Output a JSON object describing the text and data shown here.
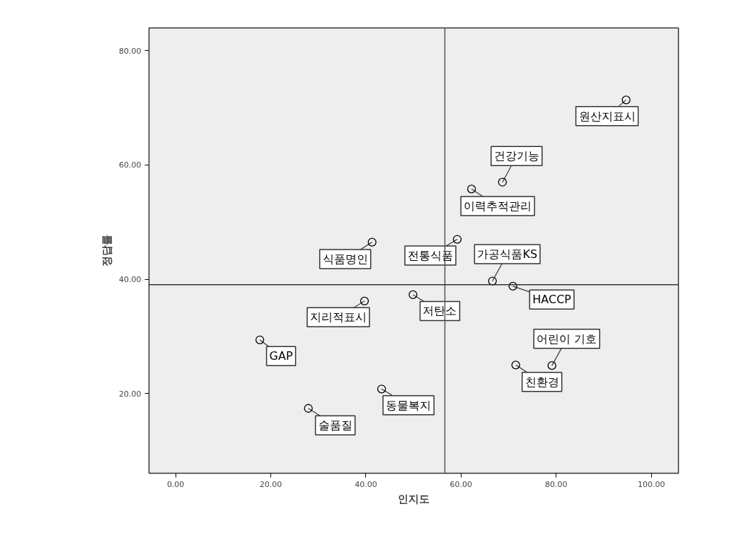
{
  "chart_data": {
    "type": "scatter",
    "xlabel": "인지도",
    "ylabel": "정답률",
    "xlim": [
      -5.6,
      105.7
    ],
    "ylim": [
      6.05,
      84.0
    ],
    "xticks": [
      {
        "value": 0,
        "label": "0.00"
      },
      {
        "value": 20,
        "label": "20.00"
      },
      {
        "value": 40,
        "label": "40.00"
      },
      {
        "value": 60,
        "label": "60.00"
      },
      {
        "value": 80,
        "label": "80.00"
      },
      {
        "value": 100,
        "label": "100.00"
      }
    ],
    "yticks": [
      {
        "value": 20,
        "label": "20.00"
      },
      {
        "value": 40,
        "label": "40.00"
      },
      {
        "value": 60,
        "label": "60.00"
      },
      {
        "value": 80,
        "label": "80.00"
      }
    ],
    "series": [
      {
        "name": "원산지표시",
        "color": "#000000",
        "x": [
          94.7
        ],
        "values": [
          71.4
        ]
      },
      {
        "name": "건강기능",
        "color": "#000000",
        "x": [
          68.7
        ],
        "values": [
          57.0
        ]
      },
      {
        "name": "이력추적관리",
        "color": "#000000",
        "x": [
          62.2
        ],
        "values": [
          55.8
        ]
      },
      {
        "name": "식품명인",
        "color": "#000000",
        "x": [
          41.3
        ],
        "values": [
          46.5
        ]
      },
      {
        "name": "전통식품",
        "color": "#000000",
        "x": [
          59.2
        ],
        "values": [
          47.0
        ]
      },
      {
        "name": "가공식품KS",
        "color": "#000000",
        "x": [
          66.6
        ],
        "values": [
          39.7
        ]
      },
      {
        "name": "HACCP",
        "color": "#000000",
        "x": [
          70.9
        ],
        "values": [
          38.8
        ]
      },
      {
        "name": "저탄소",
        "color": "#000000",
        "x": [
          49.9
        ],
        "values": [
          37.3
        ]
      },
      {
        "name": "지리적표시",
        "color": "#000000",
        "x": [
          39.7
        ],
        "values": [
          36.2
        ]
      },
      {
        "name": "GAP",
        "color": "#000000",
        "x": [
          17.7
        ],
        "values": [
          29.4
        ]
      },
      {
        "name": "어린이 기호",
        "color": "#000000",
        "x": [
          79.1
        ],
        "values": [
          24.9
        ]
      },
      {
        "name": "친환경",
        "color": "#000000",
        "x": [
          71.5
        ],
        "values": [
          25.0
        ]
      },
      {
        "name": "동물복지",
        "color": "#000000",
        "x": [
          43.3
        ],
        "values": [
          20.8
        ]
      },
      {
        "name": "술품질",
        "color": "#000000",
        "x": [
          27.9
        ],
        "values": [
          17.4
        ]
      }
    ],
    "marker": "circle",
    "ref_lines": [
      {
        "axis": "x",
        "value": 56.6,
        "color": "#555555"
      },
      {
        "axis": "y",
        "value": 39.05,
        "color": "#333333"
      }
    ]
  }
}
